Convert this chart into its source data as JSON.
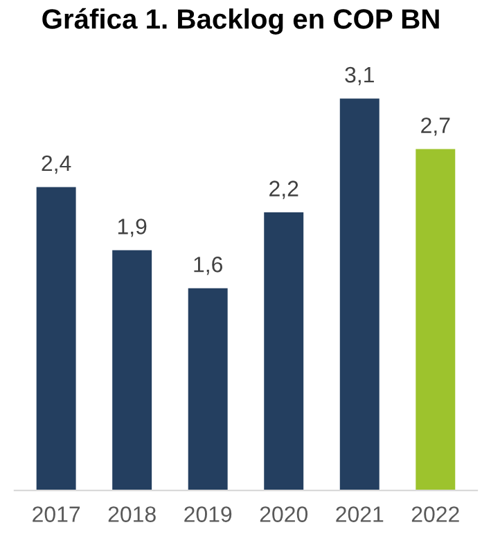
{
  "chart_data": {
    "type": "bar",
    "title": "Gráfica 1. Backlog en COP BN",
    "categories": [
      "2017",
      "2018",
      "2019",
      "2020",
      "2021",
      "2022"
    ],
    "values": [
      2.4,
      1.9,
      1.6,
      2.2,
      3.1,
      2.7
    ],
    "value_labels": [
      "2,4",
      "1,9",
      "1,6",
      "2,2",
      "3,1",
      "2,7"
    ],
    "colors": [
      "#243f60",
      "#243f60",
      "#243f60",
      "#243f60",
      "#243f60",
      "#9dc32d"
    ]
  }
}
